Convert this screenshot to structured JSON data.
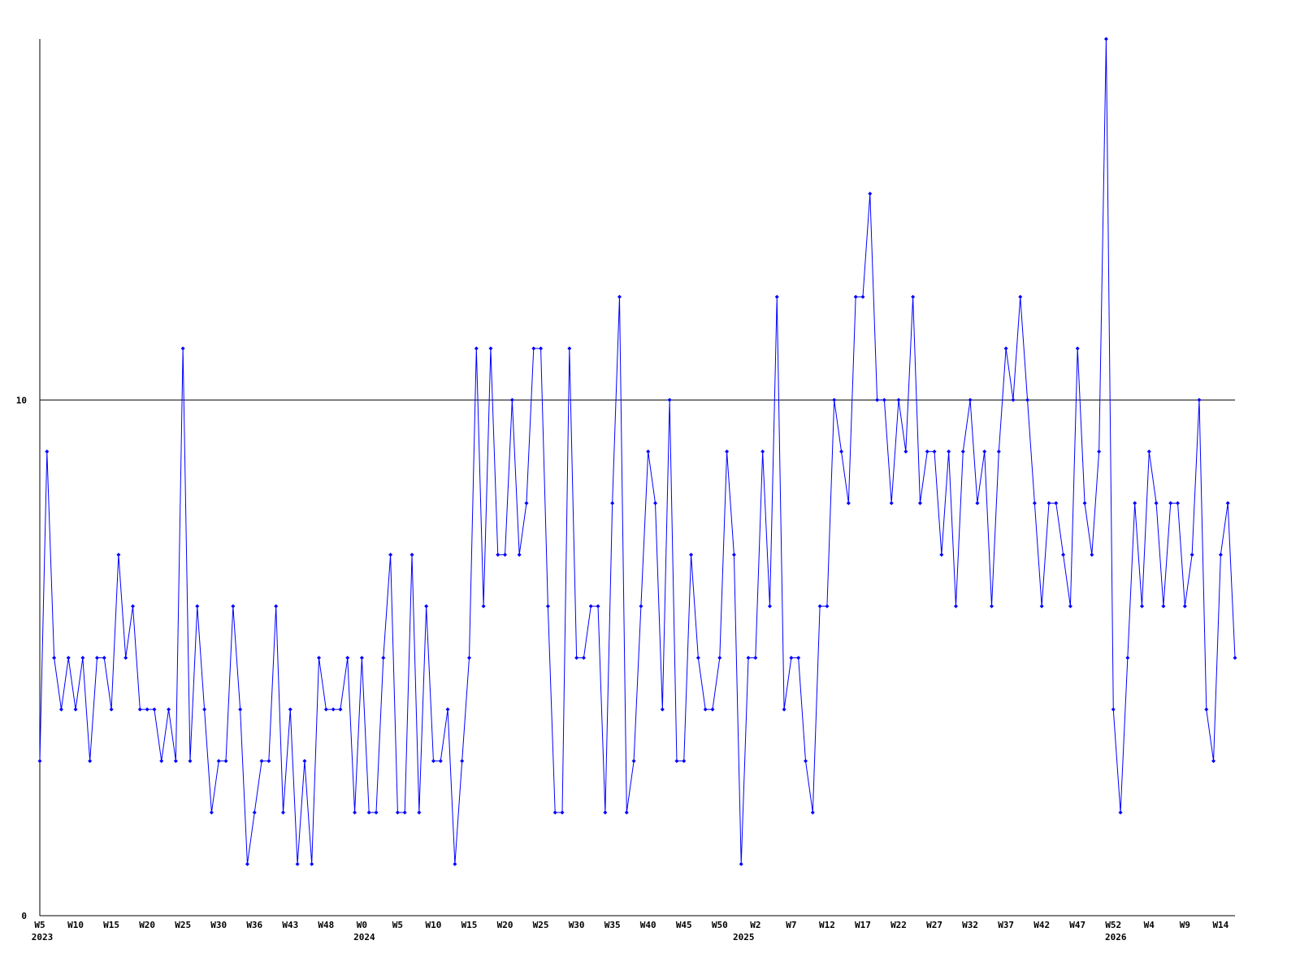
{
  "chart_data": {
    "type": "line",
    "categories": [
      "W5",
      null,
      null,
      null,
      null,
      "W10",
      null,
      null,
      null,
      null,
      "W15",
      null,
      null,
      null,
      null,
      "W20",
      null,
      null,
      null,
      null,
      "W25",
      null,
      null,
      null,
      null,
      "W30",
      null,
      null,
      null,
      null,
      "W36",
      null,
      null,
      null,
      null,
      "W43",
      null,
      null,
      null,
      null,
      "W48",
      null,
      null,
      null,
      null,
      "W0",
      null,
      null,
      null,
      null,
      "W5",
      null,
      null,
      null,
      null,
      "W10",
      null,
      null,
      null,
      null,
      "W15",
      null,
      null,
      null,
      null,
      "W20",
      null,
      null,
      null,
      null,
      "W25",
      null,
      null,
      null,
      null,
      "W30",
      null,
      null,
      null,
      null,
      "W35",
      null,
      null,
      null,
      null,
      "W40",
      null,
      null,
      null,
      null,
      "W45",
      null,
      null,
      null,
      null,
      "W50",
      null,
      null,
      null,
      null,
      "W2",
      null,
      null,
      null,
      null,
      "W7",
      null,
      null,
      null,
      null,
      "W12",
      null,
      null,
      null,
      null,
      "W17",
      null,
      null,
      null,
      null,
      "W22",
      null,
      null,
      null,
      null,
      "W27",
      null,
      null,
      null,
      null,
      "W32",
      null,
      null,
      null,
      null,
      "W37",
      null,
      null,
      null,
      null,
      "W42",
      null,
      null,
      null,
      null,
      "W47",
      null,
      null,
      null,
      null,
      "W52",
      null,
      null,
      null,
      null,
      "W4",
      null,
      null,
      null,
      null,
      "W9",
      null,
      null,
      null,
      null,
      "W14",
      null,
      null
    ],
    "year_labels": [
      {
        "value": 0,
        "label": "2023"
      },
      {
        "value": 45,
        "label": "2024"
      },
      {
        "value": 98,
        "label": "2025"
      },
      {
        "value": 150,
        "label": "2026"
      }
    ],
    "series": [
      {
        "color": "#0000ff",
        "values": [
          3,
          9,
          5,
          4,
          5,
          4,
          5,
          3,
          5,
          5,
          4,
          7,
          5,
          6,
          4,
          4,
          4,
          3,
          4,
          3,
          11,
          3,
          6,
          4,
          2,
          3,
          3,
          6,
          4,
          1,
          2,
          3,
          3,
          6,
          2,
          4,
          1,
          3,
          1,
          5,
          4,
          4,
          4,
          5,
          2,
          5,
          2,
          2,
          5,
          7,
          2,
          2,
          7,
          2,
          6,
          3,
          3,
          4,
          1,
          3,
          5,
          11,
          6,
          11,
          7,
          7,
          10,
          7,
          8,
          11,
          11,
          6,
          2,
          2,
          11,
          5,
          5,
          6,
          6,
          2,
          8,
          12,
          2,
          3,
          6,
          9,
          8,
          4,
          10,
          3,
          3,
          7,
          5,
          4,
          4,
          5,
          9,
          7,
          1,
          5,
          5,
          9,
          6,
          12,
          4,
          5,
          5,
          3,
          2,
          6,
          6,
          10,
          9,
          8,
          12,
          12,
          14,
          10,
          10,
          8,
          10,
          9,
          12,
          8,
          9,
          9,
          7,
          9,
          6,
          9,
          10,
          8,
          9,
          6,
          9,
          11,
          10,
          12,
          10,
          8,
          6,
          8,
          8,
          7,
          6,
          11,
          8,
          7,
          9,
          17,
          4,
          2,
          5,
          8,
          6,
          9,
          8,
          6,
          8,
          8,
          6,
          7,
          10,
          4,
          3,
          7,
          8,
          5
        ]
      }
    ],
    "ylim": [
      0,
      17
    ],
    "yticks": [
      0,
      10
    ],
    "grid": true
  }
}
